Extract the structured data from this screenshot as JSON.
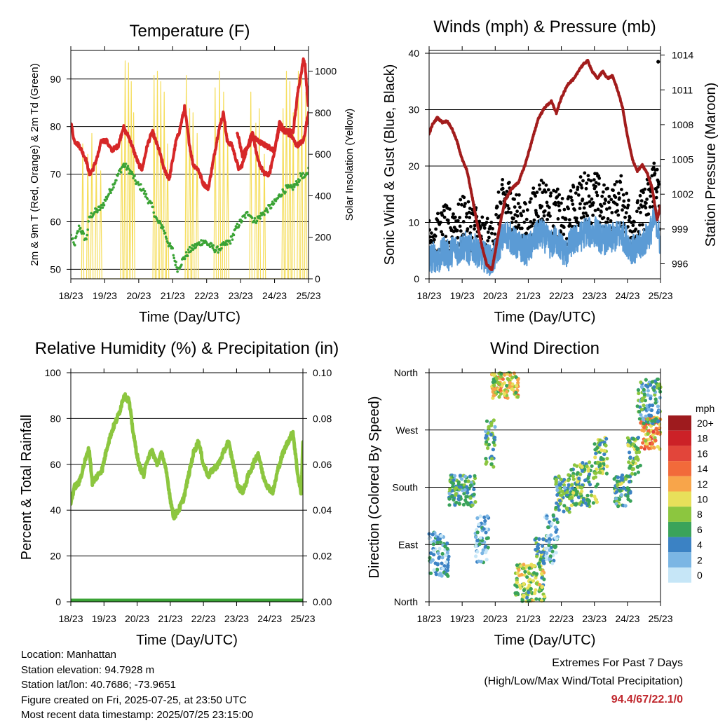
{
  "colors": {
    "temp": "#d62728",
    "dewpoint": "#3aa335",
    "solar": "#f5dd5a",
    "pressure": "#a21c1c",
    "wind": "#000000",
    "sonic": "#5b9bd5",
    "humidity": "#8cc63f",
    "precip": "#3aa335",
    "extremes_value": "#c0272d"
  },
  "chart_data": [
    {
      "id": "temperature",
      "type": "line",
      "title": "Temperature (F)",
      "xlabel": "Time (Day/UTC)",
      "ylabel": "2m & 9m T (Red, Orange) & 2m Td (Green)",
      "y2label": "Solar Insolation (Yellow)",
      "x_ticks": [
        "18/23",
        "19/23",
        "20/23",
        "21/23",
        "22/23",
        "23/23",
        "24/23",
        "25/23"
      ],
      "ylim": [
        48,
        96
      ],
      "y_ticks": [
        50,
        60,
        70,
        80,
        90
      ],
      "y2lim": [
        0,
        1100
      ],
      "y2_ticks": [
        0,
        200,
        400,
        600,
        800,
        1000
      ],
      "grid": true,
      "series": [
        {
          "key": "temp",
          "axis": "left",
          "x": [
            0,
            0.1,
            0.25,
            0.45,
            0.55,
            0.65,
            0.8,
            0.9,
            1.05,
            1.2,
            1.4,
            1.55,
            1.6,
            1.7,
            1.85,
            2.0,
            2.1,
            2.25,
            2.4,
            2.6,
            2.75,
            2.9,
            3.0,
            3.1,
            3.2,
            3.35,
            3.5,
            3.6,
            3.75,
            3.9,
            4.05,
            4.2,
            4.35,
            4.5,
            4.6,
            4.75,
            4.95,
            5.05,
            5.25,
            5.35,
            5.5,
            5.7,
            5.85,
            6.0,
            6.15,
            6.3,
            6.5,
            6.65,
            6.85,
            7.0
          ],
          "values": [
            81,
            77,
            76,
            73,
            70,
            71,
            74,
            77,
            77,
            75,
            76,
            80,
            79,
            78,
            75,
            72,
            71,
            76,
            79,
            75,
            71,
            69,
            73,
            77,
            79,
            84,
            76,
            72,
            71,
            68,
            67,
            73,
            79,
            83,
            77,
            76,
            71,
            72,
            77,
            79,
            73,
            70,
            70,
            75,
            81,
            79,
            78,
            76,
            77,
            83
          ]
        },
        {
          "key": "temp9m",
          "axis": "left",
          "x": [
            4.9,
            5.05,
            5.25,
            5.35,
            5.5,
            6.0,
            6.15,
            6.3,
            6.55,
            6.7,
            6.8,
            6.85,
            6.9,
            6.95,
            7.0
          ],
          "values": [
            79,
            74,
            76,
            78,
            77,
            75,
            80,
            79,
            79,
            88,
            92,
            94,
            93,
            88,
            84
          ]
        },
        {
          "key": "dewpoint",
          "axis": "left",
          "x": [
            0,
            0.1,
            0.25,
            0.45,
            0.55,
            0.7,
            0.9,
            1.05,
            1.2,
            1.4,
            1.55,
            1.7,
            1.8,
            1.95,
            2.1,
            2.25,
            2.4,
            2.55,
            2.7,
            2.8,
            2.9,
            3.0,
            3.05,
            3.15,
            3.3,
            3.5,
            3.7,
            3.9,
            4.1,
            4.3,
            4.5,
            4.7,
            4.9,
            5.1,
            5.25,
            5.4,
            5.55,
            5.7,
            5.85,
            6.0,
            6.2,
            6.35,
            6.5,
            6.65,
            6.8,
            6.9,
            7.0
          ],
          "values": [
            57,
            55,
            59,
            56,
            61,
            62,
            63,
            65,
            67,
            70,
            72,
            71,
            70,
            68,
            67,
            65,
            63,
            60,
            59,
            57,
            55,
            54,
            52,
            50,
            52,
            54,
            55,
            56,
            55,
            54,
            55,
            56,
            59,
            61,
            62,
            60,
            61,
            62,
            63,
            64,
            66,
            67,
            67,
            68,
            70,
            69,
            71
          ]
        },
        {
          "key": "solar",
          "axis": "right",
          "day_peaks": [
            [
              0.35,
              650
            ],
            [
              0.5,
              600
            ],
            [
              0.62,
              700
            ],
            [
              0.75,
              580
            ],
            [
              0.88,
              520
            ],
            [
              1.5,
              720
            ],
            [
              1.6,
              1050
            ],
            [
              1.7,
              1040
            ],
            [
              1.78,
              950
            ],
            [
              1.85,
              800
            ],
            [
              2.45,
              980
            ],
            [
              2.55,
              1000
            ],
            [
              2.65,
              950
            ],
            [
              2.75,
              900
            ],
            [
              2.85,
              650
            ],
            [
              3.4,
              980
            ],
            [
              3.5,
              820
            ],
            [
              3.6,
              800
            ],
            [
              3.72,
              700
            ],
            [
              4.25,
              920
            ],
            [
              4.38,
              1000
            ],
            [
              4.5,
              900
            ],
            [
              4.62,
              700
            ],
            [
              5.3,
              900
            ],
            [
              5.45,
              750
            ],
            [
              5.55,
              820
            ],
            [
              5.7,
              600
            ],
            [
              6.25,
              820
            ],
            [
              6.35,
              1000
            ],
            [
              6.45,
              950
            ],
            [
              6.55,
              800
            ],
            [
              6.7,
              1000
            ],
            [
              6.8,
              1020
            ],
            [
              6.92,
              900
            ]
          ]
        }
      ]
    },
    {
      "id": "winds-pressure",
      "type": "line",
      "title": "Winds (mph) & Pressure (mb)",
      "xlabel": "Time (Day/UTC)",
      "ylabel": "Sonic Wind & Gust (Blue, Black)",
      "y2label": "Station Pressure (Maroon)",
      "x_ticks": [
        "18/23",
        "19/23",
        "20/23",
        "21/23",
        "22/23",
        "23/23",
        "24/23",
        "25/23"
      ],
      "ylim": [
        0,
        40.5
      ],
      "y_ticks": [
        0,
        10,
        20,
        30,
        40
      ],
      "y2lim": [
        994.7,
        1014.4
      ],
      "y2_ticks": [
        996,
        999,
        1002,
        1005,
        1008,
        1011,
        1014
      ],
      "grid": true,
      "series": [
        {
          "key": "pressure",
          "axis": "right",
          "x": [
            0,
            0.1,
            0.25,
            0.4,
            0.55,
            0.7,
            0.85,
            1.0,
            1.15,
            1.3,
            1.45,
            1.6,
            1.75,
            1.9,
            2.0,
            2.15,
            2.3,
            2.5,
            2.7,
            2.9,
            3.1,
            3.3,
            3.5,
            3.7,
            3.85,
            4.0,
            4.2,
            4.4,
            4.55,
            4.7,
            4.8,
            4.95,
            5.1,
            5.25,
            5.4,
            5.55,
            5.7,
            5.85,
            6.0,
            6.15,
            6.3,
            6.45,
            6.6,
            6.75,
            6.9,
            7.0
          ],
          "values": [
            1007.2,
            1008.0,
            1008.6,
            1008.2,
            1008.3,
            1007.6,
            1006.5,
            1005.0,
            1004.0,
            1001.8,
            999.5,
            997.5,
            995.9,
            995.5,
            997.0,
            999.5,
            1001.5,
            1002.5,
            1003.0,
            1004.5,
            1006.5,
            1008.5,
            1009.5,
            1010.0,
            1009.0,
            1010.3,
            1011.5,
            1012.0,
            1012.8,
            1013.3,
            1013.5,
            1012.5,
            1012.0,
            1012.6,
            1012.0,
            1012.2,
            1011.0,
            1009.5,
            1007.0,
            1005.0,
            1004.0,
            1004.5,
            1003.8,
            1002.5,
            999.8,
            1001.0
          ]
        },
        {
          "key": "gust",
          "axis": "left",
          "x": [
            0,
            0.15,
            0.3,
            0.45,
            0.6,
            0.75,
            0.9,
            1.05,
            1.2,
            1.35,
            1.5,
            1.65,
            1.8,
            1.9,
            2.05,
            2.2,
            2.35,
            2.5,
            2.65,
            2.8,
            2.95,
            3.1,
            3.25,
            3.4,
            3.55,
            3.7,
            3.85,
            4.0,
            4.15,
            4.3,
            4.45,
            4.6,
            4.75,
            4.9,
            5.05,
            5.2,
            5.35,
            5.5,
            5.65,
            5.8,
            5.95,
            6.1,
            6.25,
            6.4,
            6.55,
            6.7,
            6.85,
            7.0
          ],
          "values": [
            7,
            8,
            7,
            9,
            8,
            10,
            9,
            11,
            9,
            10,
            8,
            7,
            6,
            6,
            10,
            13,
            14,
            13,
            11,
            10,
            9,
            11,
            13,
            14,
            13,
            11,
            12,
            10,
            9,
            12,
            13,
            14,
            15,
            14,
            15,
            13,
            12,
            12,
            13,
            14,
            12,
            10,
            9,
            11,
            13,
            15,
            19,
            11
          ]
        },
        {
          "key": "sonic",
          "axis": "left",
          "x": [
            0,
            0.15,
            0.3,
            0.45,
            0.6,
            0.75,
            0.9,
            1.05,
            1.2,
            1.35,
            1.5,
            1.65,
            1.8,
            1.9,
            2.05,
            2.2,
            2.35,
            2.5,
            2.65,
            2.8,
            2.95,
            3.1,
            3.25,
            3.4,
            3.55,
            3.7,
            3.85,
            4.0,
            4.15,
            4.3,
            4.45,
            4.6,
            4.75,
            4.9,
            5.05,
            5.2,
            5.35,
            5.5,
            5.65,
            5.8,
            5.95,
            6.1,
            6.25,
            6.4,
            6.55,
            6.7,
            6.85,
            7.0
          ],
          "values": [
            3.5,
            4,
            3.5,
            5,
            4,
            5.5,
            5,
            6,
            5,
            5.5,
            4.5,
            4,
            3.5,
            3,
            5,
            7,
            8,
            7,
            6,
            5.5,
            5,
            6,
            7.5,
            8,
            7,
            6,
            7,
            5.5,
            4.5,
            6.5,
            7,
            7.5,
            8.5,
            8,
            8.5,
            7,
            7,
            7,
            7.5,
            8,
            7,
            5.5,
            5,
            6,
            7,
            8.5,
            11,
            6
          ]
        }
      ]
    },
    {
      "id": "humidity-precip",
      "type": "line",
      "title": "Relative Humidity (%) & Precipitation (in)",
      "xlabel": "Time (Day/UTC)",
      "ylabel": "Percent & Total Rainfall",
      "x_ticks": [
        "18/23",
        "19/23",
        "20/23",
        "21/23",
        "22/23",
        "23/23",
        "24/23",
        "25/23"
      ],
      "ylim": [
        0,
        100
      ],
      "y_ticks": [
        0,
        20,
        40,
        60,
        80,
        100
      ],
      "y2lim": [
        0,
        0.1
      ],
      "y2_ticks": [
        "0.00",
        "0.02",
        "0.04",
        "0.06",
        "0.08",
        "0.10"
      ],
      "grid": true,
      "series": [
        {
          "key": "humidity",
          "axis": "left",
          "x": [
            0,
            0.1,
            0.25,
            0.4,
            0.55,
            0.65,
            0.8,
            0.95,
            1.1,
            1.25,
            1.45,
            1.6,
            1.75,
            1.9,
            2.05,
            2.2,
            2.3,
            2.45,
            2.6,
            2.75,
            2.9,
            3.0,
            3.1,
            3.25,
            3.4,
            3.55,
            3.7,
            3.85,
            4.0,
            4.15,
            4.3,
            4.45,
            4.6,
            4.75,
            4.9,
            5.05,
            5.2,
            5.35,
            5.5,
            5.65,
            5.8,
            5.95,
            6.1,
            6.25,
            6.4,
            6.55,
            6.7,
            6.85,
            6.95,
            7.0
          ],
          "values": [
            43,
            50,
            52,
            60,
            67,
            52,
            55,
            58,
            68,
            75,
            82,
            90,
            88,
            72,
            60,
            55,
            62,
            66,
            60,
            65,
            55,
            45,
            37,
            40,
            45,
            55,
            65,
            70,
            60,
            55,
            58,
            60,
            65,
            70,
            60,
            50,
            48,
            55,
            60,
            65,
            55,
            50,
            48,
            58,
            65,
            70,
            74,
            55,
            47,
            70
          ]
        },
        {
          "key": "precip",
          "axis": "right",
          "x": [
            0,
            7
          ],
          "values": [
            0,
            0
          ]
        }
      ]
    },
    {
      "id": "wind-direction",
      "type": "scatter",
      "title": "Wind Direction",
      "xlabel": "Time (Day/UTC)",
      "ylabel": "Direction (Colored By Speed)",
      "x_ticks": [
        "18/23",
        "19/23",
        "20/23",
        "21/23",
        "22/23",
        "23/23",
        "24/23",
        "25/23"
      ],
      "y_ticks": [
        "North",
        "East",
        "South",
        "West",
        "North"
      ],
      "ylim": [
        0,
        360
      ],
      "grid": true,
      "legend_title": "mph",
      "legend_labels": [
        "20+",
        "18",
        "16",
        "14",
        "12",
        "10",
        "8",
        "6",
        "4",
        "2",
        "0"
      ],
      "legend_colors": [
        "#9e1b1e",
        "#cc2127",
        "#e2453a",
        "#f26a3a",
        "#f8a54a",
        "#e8e05a",
        "#8cc63f",
        "#3aa35a",
        "#3b82c4",
        "#7bb6e4",
        "#c6e6f7"
      ],
      "clusters": [
        {
          "x0": 0.0,
          "x1": 0.6,
          "y0": 40,
          "y1": 110,
          "speed": 3
        },
        {
          "x0": 0.6,
          "x1": 1.4,
          "y0": 150,
          "y1": 200,
          "speed": 5
        },
        {
          "x0": 1.4,
          "x1": 1.8,
          "y0": 60,
          "y1": 140,
          "speed": 3
        },
        {
          "x0": 1.7,
          "x1": 2.0,
          "y0": 210,
          "y1": 290,
          "speed": 6
        },
        {
          "x0": 1.9,
          "x1": 2.7,
          "y0": 320,
          "y1": 360,
          "speed": 10
        },
        {
          "x0": 2.6,
          "x1": 3.5,
          "y0": 0,
          "y1": 60,
          "speed": 8
        },
        {
          "x0": 3.2,
          "x1": 3.5,
          "y0": 60,
          "y1": 100,
          "speed": 6
        },
        {
          "x0": 3.5,
          "x1": 3.9,
          "y0": 60,
          "y1": 140,
          "speed": 3
        },
        {
          "x0": 3.8,
          "x1": 4.3,
          "y0": 140,
          "y1": 200,
          "speed": 6
        },
        {
          "x0": 4.3,
          "x1": 5.1,
          "y0": 150,
          "y1": 220,
          "speed": 7
        },
        {
          "x0": 5.0,
          "x1": 5.4,
          "y0": 200,
          "y1": 260,
          "speed": 7
        },
        {
          "x0": 5.6,
          "x1": 6.1,
          "y0": 150,
          "y1": 200,
          "speed": 6
        },
        {
          "x0": 6.0,
          "x1": 6.4,
          "y0": 200,
          "y1": 260,
          "speed": 7
        },
        {
          "x0": 6.4,
          "x1": 7.0,
          "y0": 240,
          "y1": 290,
          "speed": 12
        },
        {
          "x0": 6.3,
          "x1": 7.0,
          "y0": 280,
          "y1": 350,
          "speed": 5
        }
      ]
    }
  ],
  "footer": {
    "location": "Location: Manhattan",
    "elevation": "Station elevation: 94.7928 m",
    "latlon": "Station lat/lon: 40.7686; -73.9651",
    "created": "Figure created on Fri, 2025-07-25, at 23:50 UTC",
    "recent": "Most recent data timestamp: 2025/07/25 23:15:00",
    "extremes_title": "Extremes For Past 7 Days",
    "extremes_desc": "(High/Low/Max Wind/Total Precipitation)",
    "extremes_value": "94.4/67/22.1/0"
  }
}
